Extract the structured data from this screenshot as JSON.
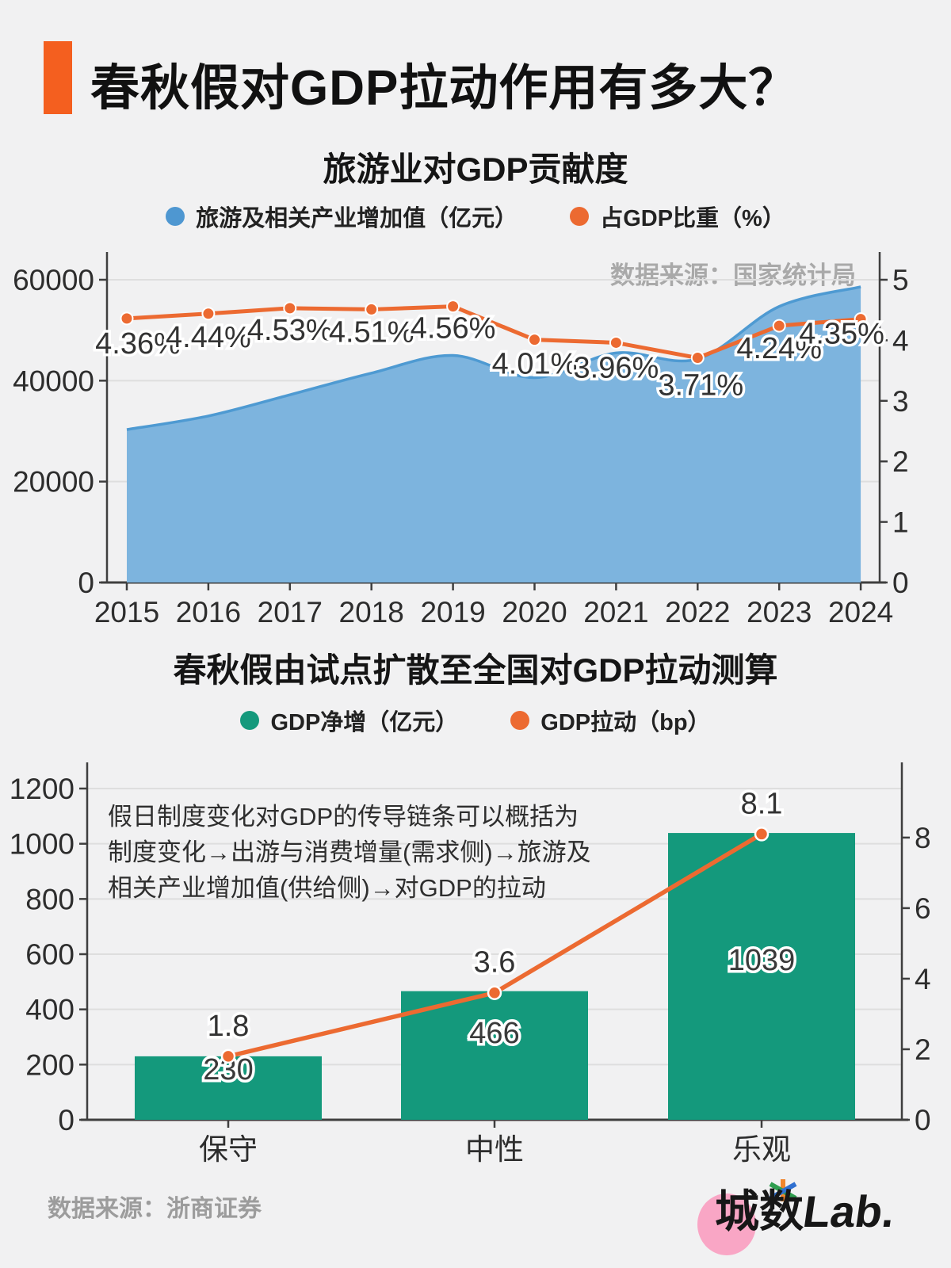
{
  "header": {
    "title": "春秋假对GDP拉动作用有多大？"
  },
  "colors": {
    "background": "#f1f1f2",
    "accent_orange": "#f45f1f",
    "line_orange": "#ec6a31",
    "area_blue_fill": "#7db4de",
    "area_blue_stroke": "#4e9ad2",
    "legend_blue": "#4e97d1",
    "bar_green": "#14997c",
    "grid": "#dedede",
    "axis": "#3f3f3f",
    "muted_text": "#a9a9a9"
  },
  "chart_data": [
    {
      "type": "area+line-combo",
      "title": "旅游业对GDP贡献度",
      "source": "数据来源：国家统计局",
      "categories": [
        "2015",
        "2016",
        "2017",
        "2018",
        "2019",
        "2020",
        "2021",
        "2022",
        "2023",
        "2024"
      ],
      "series": [
        {
          "name": "旅游及相关产业增加值（亿元）",
          "kind": "area",
          "axis": "left",
          "fill": "#7db4de",
          "stroke": "#4e9ad2",
          "legend_color": "#4e97d1",
          "values": [
            30300,
            33000,
            37200,
            41500,
            45000,
            40600,
            45500,
            44300,
            54700,
            58600
          ]
        },
        {
          "name": "占GDP比重（%）",
          "kind": "line",
          "axis": "right",
          "color": "#ec6a31",
          "legend_color": "#ec6a31",
          "values": [
            4.36,
            4.44,
            4.53,
            4.51,
            4.56,
            4.01,
            3.96,
            3.71,
            4.24,
            4.35
          ],
          "labels": [
            "4.36%",
            "4.44%",
            "4.53%",
            "4.51%",
            "4.56%",
            "4.01%",
            "3.96%",
            "3.71%",
            "4.24%",
            "4.35%"
          ]
        }
      ],
      "left_axis": {
        "min": 0,
        "max": 60000,
        "ticks": [
          0,
          20000,
          40000,
          60000
        ]
      },
      "right_axis": {
        "min": 0,
        "max": 5,
        "ticks": [
          0,
          1,
          2,
          3,
          4,
          5
        ]
      },
      "grid": true,
      "legend_position": "top"
    },
    {
      "type": "bar+line-combo",
      "title": "春秋假由试点扩散至全国对GDP拉动测算",
      "annotation_lines": [
        "假日制度变化对GDP的传导链条可以概括为",
        "制度变化→出游与消费增量(需求侧)→旅游及",
        "相关产业增加值(供给侧)→对GDP的拉动"
      ],
      "categories": [
        "保守",
        "中性",
        "乐观"
      ],
      "series": [
        {
          "name": "GDP净增（亿元）",
          "kind": "bar",
          "axis": "left",
          "color": "#14997c",
          "legend_color": "#14997c",
          "values": [
            230,
            466,
            1039
          ],
          "labels": [
            "230",
            "466",
            "1039"
          ]
        },
        {
          "name": "GDP拉动（bp）",
          "kind": "line",
          "axis": "right",
          "color": "#ec6a31",
          "legend_color": "#ec6a31",
          "values": [
            1.8,
            3.6,
            8.1
          ],
          "labels": [
            "1.8",
            "3.6",
            "8.1"
          ]
        }
      ],
      "left_axis": {
        "min": 0,
        "max": 1200,
        "ticks": [
          0,
          200,
          400,
          600,
          800,
          1000,
          1200
        ]
      },
      "right_axis": {
        "min": 0,
        "max": 9.39,
        "ticks": [
          0,
          2,
          4,
          6,
          8
        ]
      },
      "grid": true,
      "legend_position": "top"
    }
  ],
  "footer": {
    "source": "数据来源：浙商证券",
    "logo": {
      "part1": "城数",
      "part2": "Lab."
    }
  }
}
